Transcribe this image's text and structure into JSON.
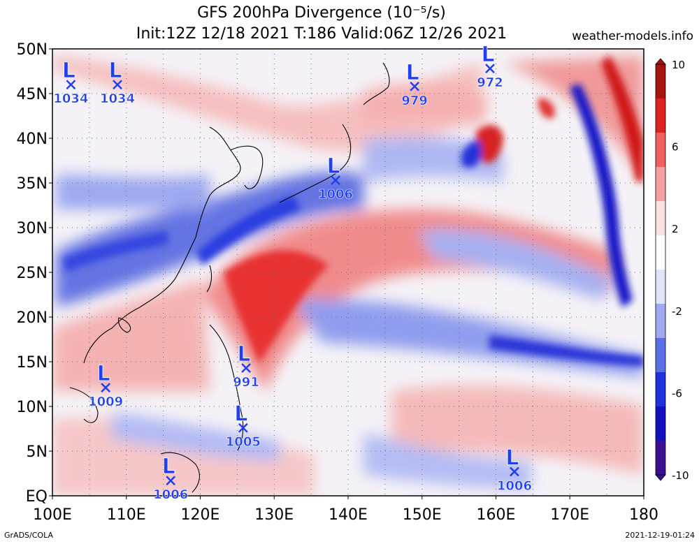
{
  "title_line1": "GFS 200hPa Divergence (10⁻⁵/s)",
  "title_line2": "Init:12Z 12/18 2021 T:186 Valid:06Z 12/26 2021",
  "site": "weather-models.info",
  "footer_left": "GrADS/COLA",
  "footer_right": "2021-12-19-01:24",
  "lat_labels": [
    "50N",
    "45N",
    "40N",
    "35N",
    "30N",
    "25N",
    "20N",
    "15N",
    "10N",
    "5N",
    "EQ"
  ],
  "lon_labels": [
    "100E",
    "110E",
    "120E",
    "130E",
    "140E",
    "150E",
    "160E",
    "170E",
    "180"
  ],
  "colorbar": {
    "labels": [
      "10",
      "6",
      "2",
      "-2",
      "-6",
      "-10"
    ],
    "colors": [
      "#aa1111",
      "#e02020",
      "#f06060",
      "#f4a0a0",
      "#fbe0e0",
      "#ffffff",
      "#e0e4fb",
      "#a0aaf2",
      "#5a6ee6",
      "#2030e0",
      "#1010c0",
      "#3a1090"
    ]
  },
  "lows": [
    {
      "lat": 46,
      "lon": 102.5,
      "pressure": "1034"
    },
    {
      "lat": 46,
      "lon": 108.8,
      "pressure": "1034"
    },
    {
      "lat": 45.8,
      "lon": 149,
      "pressure": "979"
    },
    {
      "lat": 47.8,
      "lon": 159.2,
      "pressure": "972"
    },
    {
      "lat": 35.3,
      "lon": 138.3,
      "pressure": "1006"
    },
    {
      "lat": 14.3,
      "lon": 126.2,
      "pressure": "991"
    },
    {
      "lat": 12.1,
      "lon": 107.2,
      "pressure": "1009"
    },
    {
      "lat": 7.6,
      "lon": 125.8,
      "pressure": "1005"
    },
    {
      "lat": 1.7,
      "lon": 116,
      "pressure": "1006"
    },
    {
      "lat": 2.7,
      "lon": 162.5,
      "pressure": "1006"
    }
  ]
}
